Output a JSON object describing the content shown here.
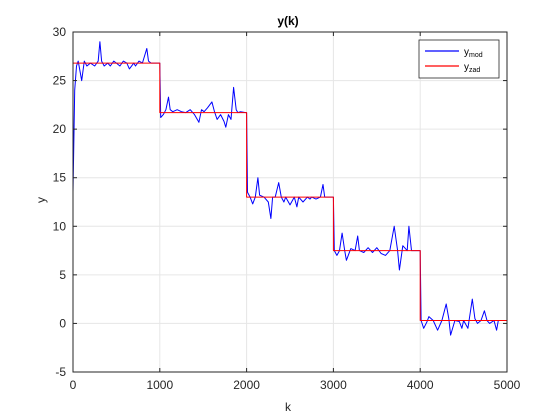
{
  "chart_data": {
    "type": "line",
    "title": "y(k)",
    "xlabel": "k",
    "ylabel": "y",
    "xlim": [
      0,
      5000
    ],
    "ylim": [
      -5,
      30
    ],
    "xticks": [
      0,
      1000,
      2000,
      3000,
      4000,
      5000
    ],
    "yticks": [
      -5,
      0,
      5,
      10,
      15,
      20,
      25,
      30
    ],
    "xtick_labels": [
      "0",
      "1000",
      "2000",
      "3000",
      "4000",
      "5000"
    ],
    "ytick_labels": [
      "-5",
      "0",
      "5",
      "10",
      "15",
      "20",
      "25",
      "30"
    ],
    "grid": true,
    "legend_position": "top-right",
    "legend": [
      {
        "base": "y",
        "sub": "mod",
        "color": "#0000ff"
      },
      {
        "base": "y",
        "sub": "zad",
        "color": "#ff0000"
      }
    ],
    "series": [
      {
        "name": "ymod",
        "color": "#0000ff",
        "x": [
          0,
          20,
          40,
          60,
          100,
          130,
          160,
          200,
          250,
          290,
          310,
          330,
          360,
          400,
          430,
          470,
          500,
          540,
          580,
          620,
          650,
          700,
          720,
          760,
          800,
          850,
          870,
          900,
          950,
          990,
          1000,
          1010,
          1040,
          1070,
          1100,
          1120,
          1150,
          1200,
          1250,
          1300,
          1350,
          1400,
          1450,
          1480,
          1510,
          1550,
          1600,
          1630,
          1660,
          1700,
          1740,
          1760,
          1790,
          1820,
          1850,
          1880,
          1900,
          1930,
          1990,
          2000,
          2010,
          2040,
          2070,
          2100,
          2130,
          2150,
          2200,
          2250,
          2280,
          2300,
          2330,
          2370,
          2400,
          2430,
          2450,
          2500,
          2550,
          2580,
          2600,
          2650,
          2700,
          2730,
          2750,
          2800,
          2850,
          2880,
          2900,
          2950,
          2990,
          3000,
          3010,
          3040,
          3070,
          3100,
          3130,
          3150,
          3200,
          3250,
          3280,
          3300,
          3350,
          3400,
          3450,
          3500,
          3550,
          3600,
          3650,
          3700,
          3740,
          3760,
          3800,
          3850,
          3870,
          3900,
          3950,
          3990,
          4000,
          4010,
          4040,
          4080,
          4100,
          4150,
          4200,
          4250,
          4300,
          4330,
          4350,
          4400,
          4450,
          4480,
          4500,
          4550,
          4600,
          4630,
          4660,
          4700,
          4740,
          4770,
          4800,
          4850,
          4880,
          4900,
          4950,
          5000
        ],
        "y": [
          13.5,
          24.0,
          26.5,
          27.0,
          25.0,
          27.0,
          26.5,
          26.8,
          26.5,
          27.0,
          29.0,
          27.0,
          26.5,
          26.8,
          26.5,
          27.0,
          26.8,
          26.5,
          27.0,
          26.8,
          26.2,
          26.8,
          26.5,
          27.0,
          26.8,
          28.3,
          27.0,
          26.8,
          26.8,
          26.8,
          26.8,
          21.2,
          21.5,
          22.0,
          23.3,
          22.0,
          21.8,
          22.0,
          21.8,
          21.7,
          22.0,
          21.5,
          20.7,
          22.0,
          21.8,
          22.2,
          22.8,
          21.8,
          21.0,
          21.5,
          20.8,
          20.2,
          21.5,
          21.0,
          24.3,
          22.0,
          21.7,
          21.8,
          21.7,
          21.7,
          13.5,
          13.0,
          12.3,
          13.0,
          15.0,
          13.2,
          13.0,
          12.5,
          10.8,
          13.0,
          13.0,
          14.5,
          13.0,
          12.5,
          13.0,
          12.2,
          13.0,
          12.0,
          13.0,
          12.5,
          13.0,
          12.8,
          13.0,
          12.8,
          13.0,
          14.3,
          13.0,
          13.0,
          13.0,
          13.0,
          7.5,
          7.0,
          7.5,
          9.3,
          7.5,
          6.5,
          7.7,
          7.5,
          9.0,
          7.5,
          7.3,
          7.8,
          7.3,
          7.8,
          7.2,
          7.0,
          7.5,
          10.0,
          7.5,
          5.5,
          8.0,
          7.5,
          10.0,
          7.5,
          7.5,
          7.5,
          7.5,
          0.3,
          -0.5,
          0.2,
          0.7,
          0.3,
          -0.7,
          0.3,
          2.0,
          0.5,
          -1.2,
          0.3,
          0.2,
          -0.5,
          0.3,
          -0.5,
          2.5,
          0.5,
          0.0,
          0.3,
          1.3,
          0.3,
          0.0,
          0.3,
          -0.7,
          0.3,
          0.3,
          0.3
        ]
      },
      {
        "name": "yzad",
        "color": "#ff0000",
        "x": [
          0,
          1000,
          1000,
          2000,
          2000,
          3000,
          3000,
          4000,
          4000,
          5000
        ],
        "y": [
          26.8,
          26.8,
          21.7,
          21.7,
          13.0,
          13.0,
          7.5,
          7.5,
          0.3,
          0.3
        ]
      }
    ]
  }
}
